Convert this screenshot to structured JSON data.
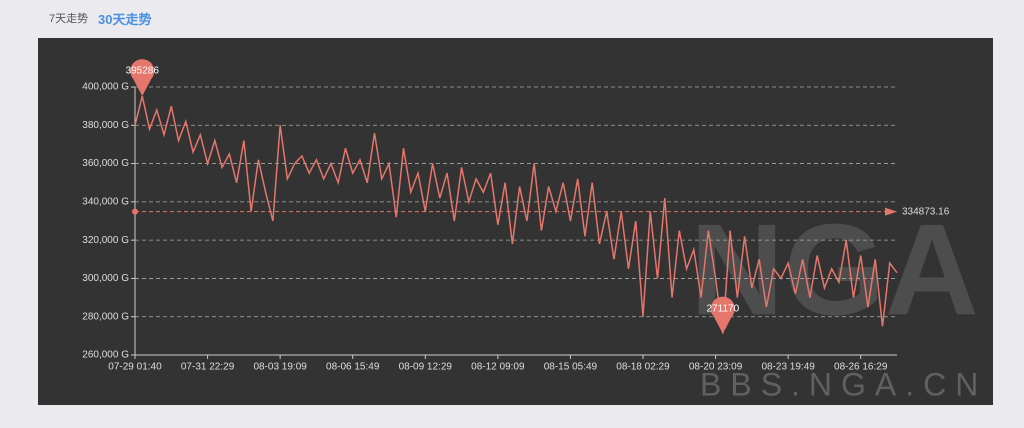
{
  "tabs": [
    "7天走势",
    "30天走势"
  ],
  "watermark": {
    "logo": "NGA",
    "site": "BBS.NGA.CN"
  },
  "chart_data": {
    "type": "line",
    "categories": [
      "07-29 01:40",
      null,
      null,
      null,
      null,
      null,
      null,
      null,
      null,
      null,
      "07-31 22:29",
      null,
      null,
      null,
      null,
      null,
      null,
      null,
      null,
      null,
      "08-03 19:09",
      null,
      null,
      null,
      null,
      null,
      null,
      null,
      null,
      null,
      "08-06 15:49",
      null,
      null,
      null,
      null,
      null,
      null,
      null,
      null,
      null,
      "08-09 12:29",
      null,
      null,
      null,
      null,
      null,
      null,
      null,
      null,
      null,
      "08-12 09:09",
      null,
      null,
      null,
      null,
      null,
      null,
      null,
      null,
      null,
      "08-15 05:49",
      null,
      null,
      null,
      null,
      null,
      null,
      null,
      null,
      null,
      "08-18 02:29",
      null,
      null,
      null,
      null,
      null,
      null,
      null,
      null,
      null,
      "08-20 23:09",
      null,
      null,
      null,
      null,
      null,
      null,
      null,
      null,
      null,
      "08-23 19:49",
      null,
      null,
      null,
      null,
      null,
      null,
      null,
      null,
      null,
      "08-26 16:29",
      null,
      null,
      null,
      null,
      null
    ],
    "series": [
      {
        "color": "#e5766c",
        "values": [
          380000,
          395286,
          378000,
          388000,
          375000,
          390000,
          372000,
          382000,
          366000,
          375000,
          360000,
          372000,
          358000,
          365000,
          350000,
          372000,
          335000,
          362000,
          345000,
          330000,
          380000,
          352000,
          360000,
          364000,
          355000,
          362000,
          352000,
          360000,
          350000,
          368000,
          355000,
          362000,
          350000,
          376000,
          352000,
          360000,
          332000,
          368000,
          345000,
          355000,
          335000,
          360000,
          342000,
          355000,
          330000,
          358000,
          340000,
          352000,
          345000,
          355000,
          328000,
          350000,
          318000,
          348000,
          330000,
          360000,
          325000,
          348000,
          335000,
          350000,
          330000,
          352000,
          322000,
          350000,
          318000,
          335000,
          310000,
          335000,
          305000,
          330000,
          280000,
          335000,
          300000,
          342000,
          290000,
          325000,
          305000,
          315000,
          290000,
          325000,
          300000,
          271170,
          325000,
          290000,
          322000,
          295000,
          310000,
          285000,
          305000,
          300000,
          308000,
          292000,
          310000,
          290000,
          312000,
          295000,
          305000,
          298000,
          320000,
          290000,
          312000,
          285000,
          310000,
          275000,
          308000,
          303000
        ]
      }
    ],
    "average": 334873.16,
    "ylim": [
      260000,
      400000
    ],
    "yticks": [
      {
        "value": 260000,
        "label": "260,000 G"
      },
      {
        "value": 280000,
        "label": "280,000 G"
      },
      {
        "value": 300000,
        "label": "300,000 G"
      },
      {
        "value": 320000,
        "label": "320,000 G"
      },
      {
        "value": 340000,
        "label": "340,000 G"
      },
      {
        "value": 360000,
        "label": "360,000 G"
      },
      {
        "value": 380000,
        "label": "380,000 G"
      },
      {
        "value": 400000,
        "label": "400,000 G"
      }
    ],
    "grid": true
  }
}
